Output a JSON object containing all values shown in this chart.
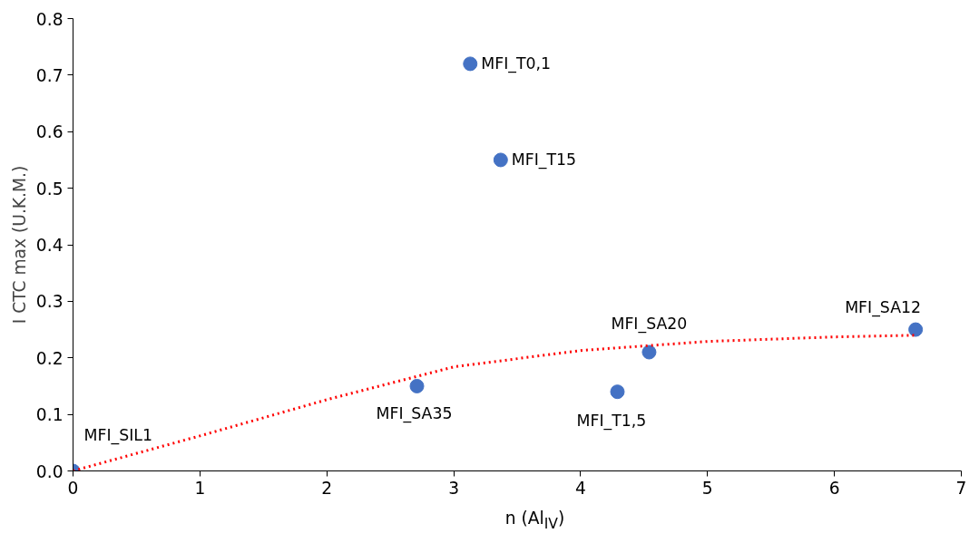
{
  "chart_data": {
    "type": "scatter",
    "xlabel": "n (Al$_{IV}$)",
    "ylabel": "I CTC max (U.K.M.)",
    "xlim": [
      0,
      7
    ],
    "ylim": [
      0,
      0.8
    ],
    "xticks": [
      0,
      1,
      2,
      3,
      4,
      5,
      6,
      7
    ],
    "yticks": [
      {
        "value": 0,
        "label": "0.0"
      },
      0.1,
      0.2,
      0.3,
      0.4,
      0.5,
      0.6,
      0.7,
      0.8
    ],
    "grid": false,
    "marker": "circle",
    "series": [
      {
        "type": "scatter",
        "color": "#4472c4",
        "x": [
          0,
          3.13,
          3.37,
          2.71,
          4.29,
          4.54,
          6.64
        ],
        "values": [
          0,
          0.72,
          0.55,
          0.15,
          0.14,
          0.21,
          0.25
        ]
      },
      {
        "type": "line",
        "color": "#ff0000",
        "line_style": "dotted",
        "marker": "none",
        "x": [
          0,
          1,
          2,
          3,
          4,
          5,
          6,
          6.64
        ],
        "values": [
          0,
          0.062,
          0.126,
          0.184,
          0.213,
          0.229,
          0.237,
          0.24
        ]
      }
    ],
    "annotations": [
      {
        "text": "MFI_SIL1",
        "x": 0,
        "y": 0
      },
      {
        "text": "MFI_T0,1",
        "x": 3.13,
        "y": 0.72
      },
      {
        "text": "MFI_T15",
        "x": 3.37,
        "y": 0.55
      },
      {
        "text": "MFI_SA35",
        "x": 2.71,
        "y": 0.15
      },
      {
        "text": "MFI_T1,5",
        "x": 4.29,
        "y": 0.14
      },
      {
        "text": "MFI_SA20",
        "x": 4.54,
        "y": 0.21
      },
      {
        "text": "MFI_SA12",
        "x": 6.64,
        "y": 0.25
      }
    ]
  }
}
